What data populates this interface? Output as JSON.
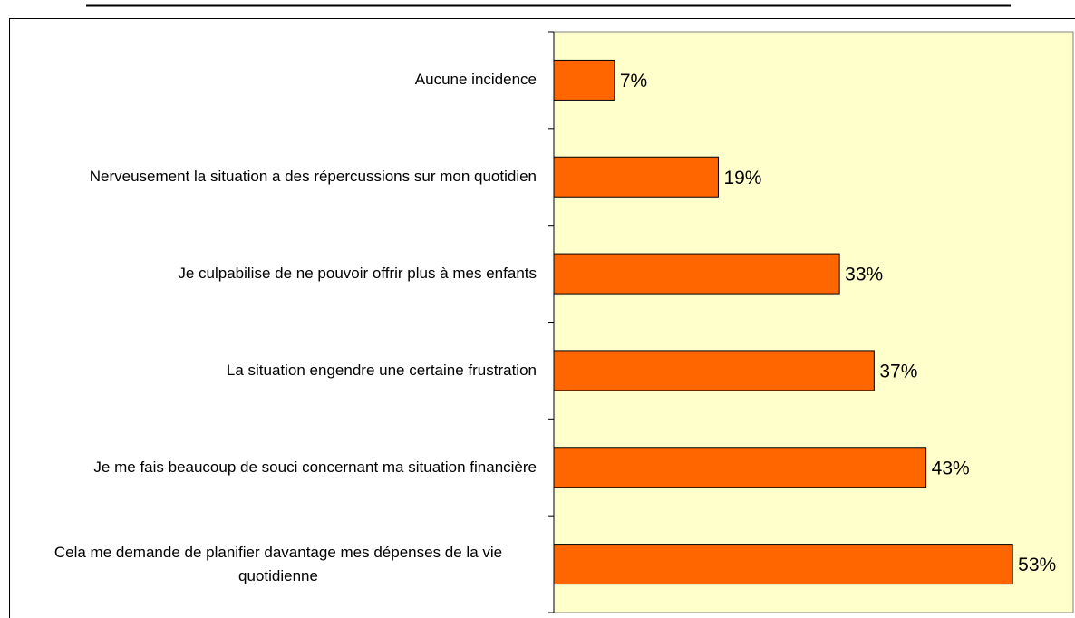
{
  "chart_data": {
    "type": "bar",
    "orientation": "horizontal",
    "categories": [
      "Aucune incidence",
      "Nerveusement la situation a des répercussions sur mon quotidien",
      "Je culpabilise de ne pouvoir offrir plus à mes enfants",
      "La situation engendre une certaine frustration",
      "Je me fais beaucoup de souci concernant ma situation financière",
      "Cela me demande de planifier davantage mes dépenses de la vie quotidienne"
    ],
    "values": [
      7,
      19,
      33,
      37,
      43,
      53
    ],
    "value_labels": [
      "7%",
      "19%",
      "33%",
      "37%",
      "43%",
      "53%"
    ],
    "color": "#ff6600",
    "plot_background": "#ffffcc",
    "xlim": [
      0,
      60
    ]
  }
}
